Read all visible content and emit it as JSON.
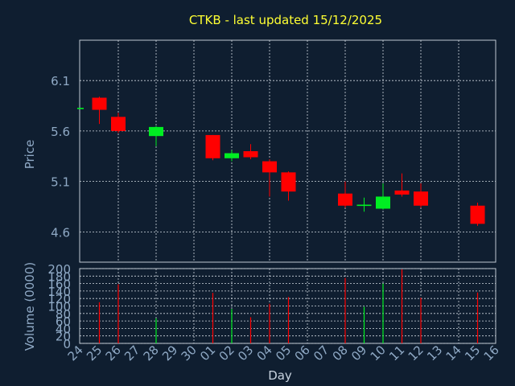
{
  "chart_data": {
    "type": "candlestick",
    "title": "CTKB - last updated 15/12/2025",
    "xlabel": "Day",
    "price_ylabel": "Price",
    "volume_ylabel": "Volume (0000)",
    "price_ylim": [
      4.3,
      6.5
    ],
    "price_ticks": [
      "6.1",
      "5.6",
      "5.1",
      "4.6"
    ],
    "volume_ylim": [
      0,
      200
    ],
    "volume_ticks": [
      "200",
      "180",
      "160",
      "140",
      "120",
      "100",
      "80",
      "60",
      "40",
      "20",
      "0"
    ],
    "x_ticks": [
      "24",
      "25",
      "26",
      "27",
      "28",
      "29",
      "30",
      "01",
      "02",
      "03",
      "04",
      "05",
      "06",
      "07",
      "08",
      "09",
      "10",
      "11",
      "12",
      "13",
      "14",
      "15",
      "16"
    ],
    "candles": [
      {
        "day": "24",
        "open": 5.83,
        "close": 5.83,
        "high": 5.83,
        "low": 5.83,
        "volume": 0
      },
      {
        "day": "25",
        "open": 5.93,
        "close": 5.81,
        "high": 5.94,
        "low": 5.67,
        "volume": 110
      },
      {
        "day": "26",
        "open": 5.74,
        "close": 5.6,
        "high": 5.78,
        "low": 5.58,
        "volume": 158
      },
      {
        "day": "28",
        "open": 5.55,
        "close": 5.64,
        "high": 5.65,
        "low": 5.45,
        "volume": 67
      },
      {
        "day": "01",
        "open": 5.56,
        "close": 5.33,
        "high": 5.56,
        "low": 5.31,
        "volume": 135
      },
      {
        "day": "02",
        "open": 5.33,
        "close": 5.38,
        "high": 5.41,
        "low": 5.3,
        "volume": 92
      },
      {
        "day": "03",
        "open": 5.4,
        "close": 5.34,
        "high": 5.47,
        "low": 5.32,
        "volume": 70
      },
      {
        "day": "04",
        "open": 5.3,
        "close": 5.19,
        "high": 5.32,
        "low": 4.95,
        "volume": 106
      },
      {
        "day": "05",
        "open": 5.19,
        "close": 5.0,
        "high": 5.2,
        "low": 4.91,
        "volume": 124
      },
      {
        "day": "08",
        "open": 4.98,
        "close": 4.86,
        "high": 5.1,
        "low": 4.84,
        "volume": 175
      },
      {
        "day": "09",
        "open": 4.86,
        "close": 4.87,
        "high": 4.94,
        "low": 4.8,
        "volume": 98
      },
      {
        "day": "10",
        "open": 4.83,
        "close": 4.95,
        "high": 5.08,
        "low": 4.82,
        "volume": 160
      },
      {
        "day": "11",
        "open": 5.01,
        "close": 4.97,
        "high": 5.18,
        "low": 4.95,
        "volume": 198
      },
      {
        "day": "12",
        "open": 5.0,
        "close": 4.86,
        "high": 5.08,
        "low": 4.84,
        "volume": 122
      },
      {
        "day": "15",
        "open": 4.86,
        "close": 4.68,
        "high": 4.89,
        "low": 4.66,
        "volume": 136
      }
    ],
    "up_color": "#00ee22",
    "down_color": "#ff0000",
    "grid": true
  },
  "colors": {
    "background": "#0f1e30",
    "title": "#ffff33",
    "axis_text": "#8fa9c5",
    "label_text": "#c8d3df",
    "grid": "#d0d8e0"
  }
}
